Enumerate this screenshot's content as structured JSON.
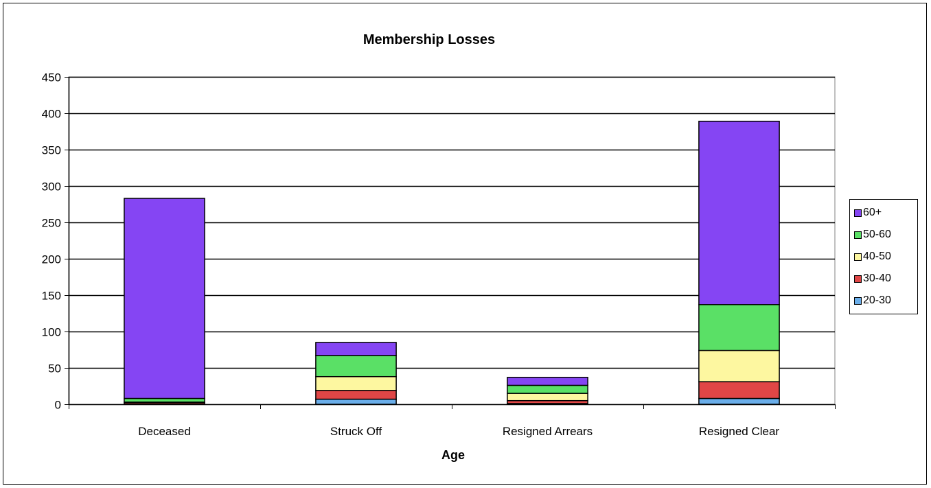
{
  "chart_data": {
    "type": "bar",
    "stacked": true,
    "title": "Membership Losses",
    "xlabel": "Age",
    "ylabel": "",
    "ylim": [
      0,
      450
    ],
    "yticks": [
      "0",
      "50",
      "100",
      "150",
      "200",
      "250",
      "300",
      "350",
      "400",
      "450"
    ],
    "grid": true,
    "legend_position": "right",
    "categories": [
      "Deceased",
      "Struck Off",
      "Resigned Arrears",
      "Resigned Clear"
    ],
    "series": [
      {
        "name": "20-30",
        "color": "#6aaeea",
        "values": [
          0,
          7,
          1,
          8
        ]
      },
      {
        "name": "30-40",
        "color": "#e04646",
        "values": [
          2,
          12,
          4,
          23
        ]
      },
      {
        "name": "40-50",
        "color": "#fdf7a0",
        "values": [
          1,
          19,
          10,
          43
        ]
      },
      {
        "name": "50-60",
        "color": "#5ae066",
        "values": [
          5,
          29,
          11,
          63
        ]
      },
      {
        "name": "60+",
        "color": "#8545f3",
        "values": [
          275,
          18,
          11,
          252
        ]
      }
    ],
    "legend_order": [
      "60+",
      "50-60",
      "40-50",
      "30-40",
      "20-30"
    ]
  }
}
